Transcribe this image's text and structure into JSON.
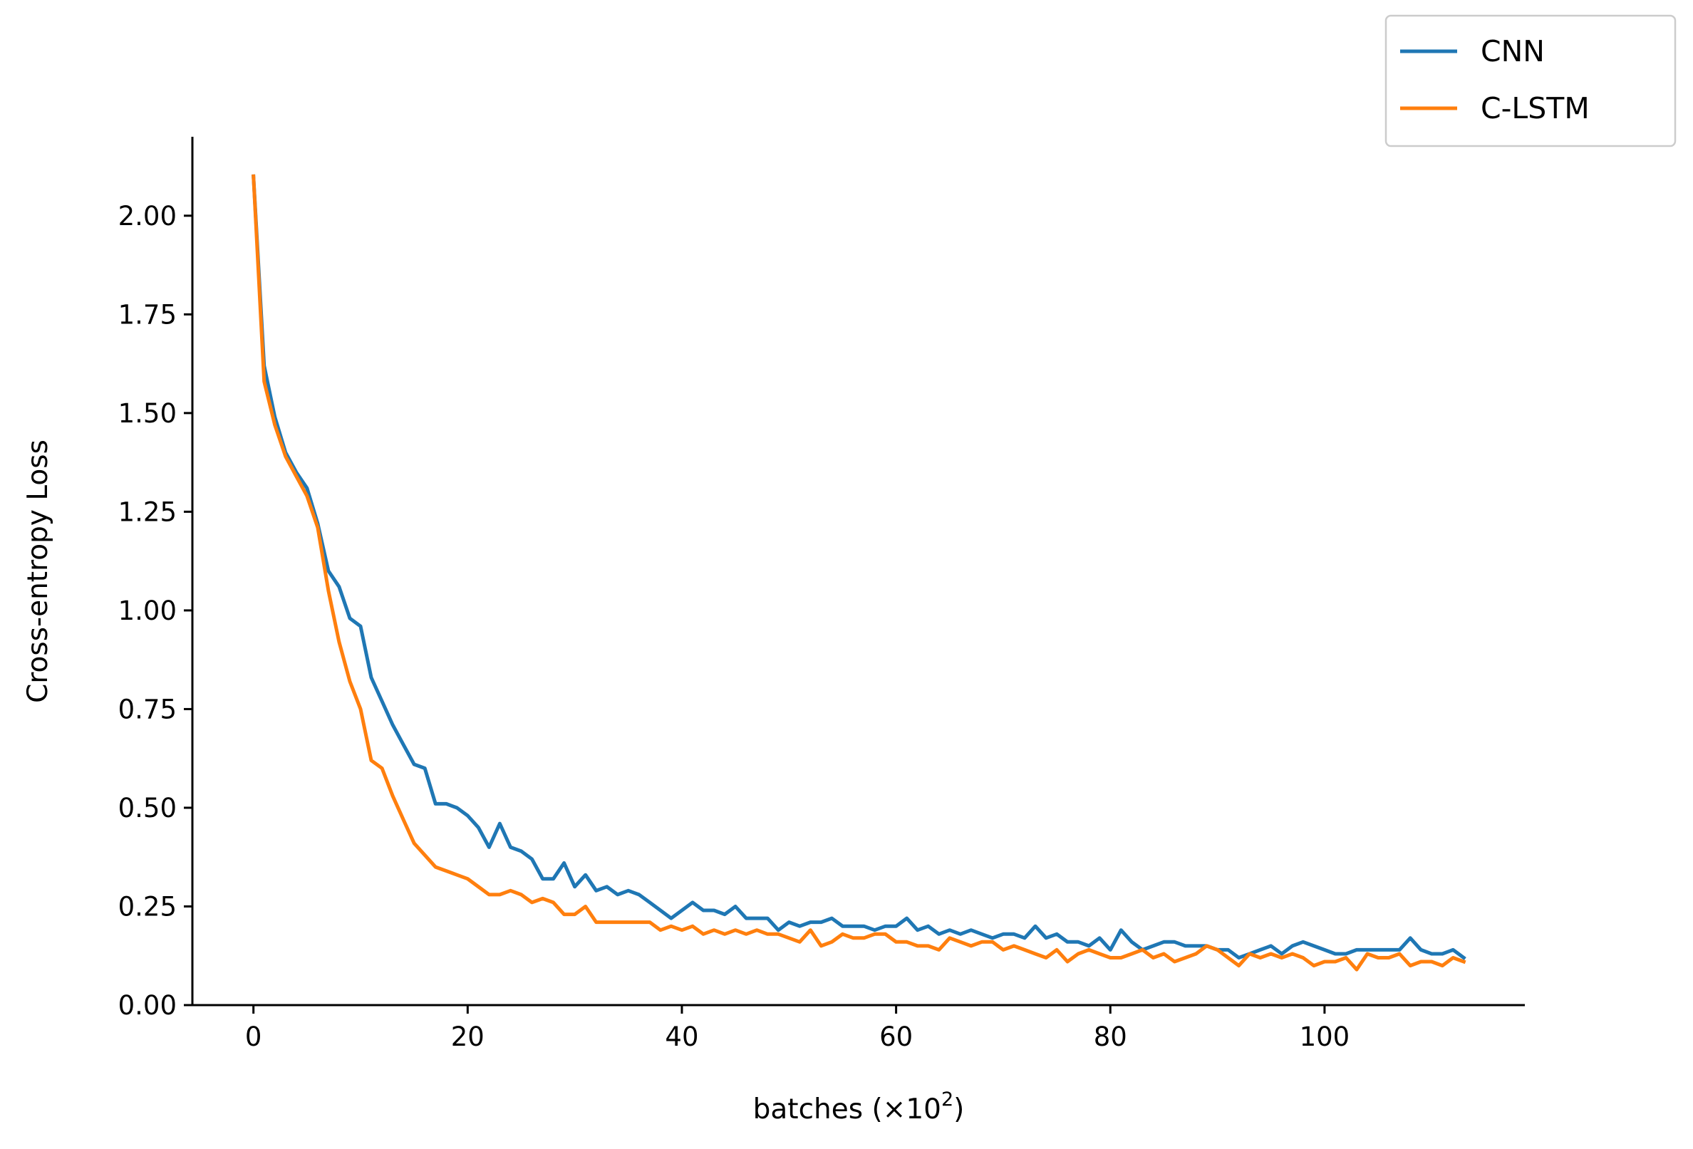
{
  "chart_data": {
    "type": "line",
    "title": "",
    "xlabel": "batches (×10",
    "xlabel_superscript": "2",
    "xlabel_suffix": ")",
    "ylabel": "Cross-entropy Loss",
    "xlim": [
      -5.7,
      118.7
    ],
    "ylim": [
      0,
      2.2
    ],
    "xticks": [
      0,
      20,
      40,
      60,
      80,
      100
    ],
    "xtick_labels": [
      "0",
      "20",
      "40",
      "60",
      "80",
      "100"
    ],
    "yticks": [
      0,
      0.25,
      0.5,
      0.75,
      1.0,
      1.25,
      1.5,
      1.75,
      2.0
    ],
    "ytick_labels": [
      "0.00",
      "0.25",
      "0.50",
      "0.75",
      "1.00",
      "1.25",
      "1.50",
      "1.75",
      "2.00"
    ],
    "grid": false,
    "legend_position": "top-right",
    "series": [
      {
        "name": "CNN",
        "color": "#1f77b4",
        "x": [
          0,
          1,
          2,
          3,
          4,
          5,
          6,
          7,
          8,
          9,
          10,
          11,
          12,
          13,
          14,
          15,
          16,
          17,
          18,
          19,
          20,
          21,
          22,
          23,
          24,
          25,
          26,
          27,
          28,
          29,
          30,
          31,
          32,
          33,
          34,
          35,
          36,
          37,
          38,
          39,
          40,
          41,
          42,
          43,
          44,
          45,
          46,
          47,
          48,
          49,
          50,
          51,
          52,
          53,
          54,
          55,
          56,
          57,
          58,
          59,
          60,
          61,
          62,
          63,
          64,
          65,
          66,
          67,
          68,
          69,
          70,
          71,
          72,
          73,
          74,
          75,
          76,
          77,
          78,
          79,
          80,
          81,
          82,
          83,
          84,
          85,
          86,
          87,
          88,
          89,
          90,
          91,
          92,
          93,
          94,
          95,
          96,
          97,
          98,
          99,
          100,
          101,
          102,
          103,
          104,
          105,
          106,
          107,
          108,
          109,
          110,
          111,
          112,
          113
        ],
        "values": [
          2.1,
          1.62,
          1.49,
          1.4,
          1.35,
          1.31,
          1.22,
          1.1,
          1.06,
          0.98,
          0.96,
          0.83,
          0.77,
          0.71,
          0.66,
          0.61,
          0.6,
          0.51,
          0.51,
          0.5,
          0.48,
          0.45,
          0.4,
          0.46,
          0.4,
          0.39,
          0.37,
          0.32,
          0.32,
          0.36,
          0.3,
          0.33,
          0.29,
          0.3,
          0.28,
          0.29,
          0.28,
          0.26,
          0.24,
          0.22,
          0.24,
          0.26,
          0.24,
          0.24,
          0.23,
          0.25,
          0.22,
          0.22,
          0.22,
          0.19,
          0.21,
          0.2,
          0.21,
          0.21,
          0.22,
          0.2,
          0.2,
          0.2,
          0.19,
          0.2,
          0.2,
          0.22,
          0.19,
          0.2,
          0.18,
          0.19,
          0.18,
          0.19,
          0.18,
          0.17,
          0.18,
          0.18,
          0.17,
          0.2,
          0.17,
          0.18,
          0.16,
          0.16,
          0.15,
          0.17,
          0.14,
          0.19,
          0.16,
          0.14,
          0.15,
          0.16,
          0.16,
          0.15,
          0.15,
          0.15,
          0.14,
          0.14,
          0.12,
          0.13,
          0.14,
          0.15,
          0.13,
          0.15,
          0.16,
          0.15,
          0.14,
          0.13,
          0.13,
          0.14,
          0.14,
          0.14,
          0.14,
          0.14,
          0.17,
          0.14,
          0.13,
          0.13,
          0.14,
          0.12
        ]
      },
      {
        "name": "C-LSTM",
        "color": "#ff7f0e",
        "x": [
          0,
          1,
          2,
          3,
          4,
          5,
          6,
          7,
          8,
          9,
          10,
          11,
          12,
          13,
          14,
          15,
          16,
          17,
          18,
          19,
          20,
          21,
          22,
          23,
          24,
          25,
          26,
          27,
          28,
          29,
          30,
          31,
          32,
          33,
          34,
          35,
          36,
          37,
          38,
          39,
          40,
          41,
          42,
          43,
          44,
          45,
          46,
          47,
          48,
          49,
          50,
          51,
          52,
          53,
          54,
          55,
          56,
          57,
          58,
          59,
          60,
          61,
          62,
          63,
          64,
          65,
          66,
          67,
          68,
          69,
          70,
          71,
          72,
          73,
          74,
          75,
          76,
          77,
          78,
          79,
          80,
          81,
          82,
          83,
          84,
          85,
          86,
          87,
          88,
          89,
          90,
          91,
          92,
          93,
          94,
          95,
          96,
          97,
          98,
          99,
          100,
          101,
          102,
          103,
          104,
          105,
          106,
          107,
          108,
          109,
          110,
          111,
          112,
          113
        ],
        "values": [
          2.1,
          1.58,
          1.47,
          1.39,
          1.34,
          1.29,
          1.21,
          1.05,
          0.92,
          0.82,
          0.75,
          0.62,
          0.6,
          0.53,
          0.47,
          0.41,
          0.38,
          0.35,
          0.34,
          0.33,
          0.32,
          0.3,
          0.28,
          0.28,
          0.29,
          0.28,
          0.26,
          0.27,
          0.26,
          0.23,
          0.23,
          0.25,
          0.21,
          0.21,
          0.21,
          0.21,
          0.21,
          0.21,
          0.19,
          0.2,
          0.19,
          0.2,
          0.18,
          0.19,
          0.18,
          0.19,
          0.18,
          0.19,
          0.18,
          0.18,
          0.17,
          0.16,
          0.19,
          0.15,
          0.16,
          0.18,
          0.17,
          0.17,
          0.18,
          0.18,
          0.16,
          0.16,
          0.15,
          0.15,
          0.14,
          0.17,
          0.16,
          0.15,
          0.16,
          0.16,
          0.14,
          0.15,
          0.14,
          0.13,
          0.12,
          0.14,
          0.11,
          0.13,
          0.14,
          0.13,
          0.12,
          0.12,
          0.13,
          0.14,
          0.12,
          0.13,
          0.11,
          0.12,
          0.13,
          0.15,
          0.14,
          0.12,
          0.1,
          0.13,
          0.12,
          0.13,
          0.12,
          0.13,
          0.12,
          0.1,
          0.11,
          0.11,
          0.12,
          0.09,
          0.13,
          0.12,
          0.12,
          0.13,
          0.1,
          0.11,
          0.11,
          0.1,
          0.12,
          0.11
        ]
      }
    ]
  }
}
